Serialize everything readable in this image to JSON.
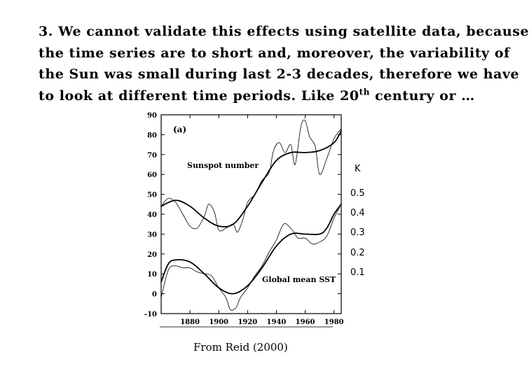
{
  "slide": {
    "line1": "3. We cannot validate this effects using satellite data, because",
    "line2": "the time series are to short and, moreover,  the variability of",
    "line3": "the Sun was small during last 2-3 decades, therefore we have",
    "line4_pre": "to  look at different time periods.    Like 20",
    "line4_sup": "th",
    "line4_post": " century or …",
    "caption": "From Reid (2000)"
  },
  "chart_data": {
    "type": "line",
    "panel_label": "(a)",
    "xlim": [
      1860,
      1985
    ],
    "ylim": [
      -10,
      90
    ],
    "x_ticks": [
      1880,
      1900,
      1920,
      1940,
      1960,
      1980
    ],
    "y_ticks": [
      -10,
      0,
      10,
      20,
      30,
      40,
      50,
      60,
      70,
      80,
      90
    ],
    "right_axis": {
      "label": "K",
      "ticks": [
        "0.5",
        "0.4",
        "0.3",
        "0.2",
        "0.1"
      ],
      "tick_positions_left_units": [
        50,
        40,
        30,
        20,
        10
      ]
    },
    "annotations": [
      "Sunspot number",
      "Global mean SST"
    ],
    "series": [
      {
        "style": "smooth",
        "x": [
          1860,
          1870,
          1880,
          1890,
          1900,
          1910,
          1920,
          1930,
          1940,
          1950,
          1960,
          1970,
          1980,
          1985
        ],
        "values": [
          44,
          47,
          44,
          38,
          34,
          35,
          44,
          56,
          67,
          71,
          71,
          72,
          76,
          82
        ]
      },
      {
        "style": "raw",
        "x": [
          1860,
          1865,
          1870,
          1875,
          1880,
          1885,
          1890,
          1893,
          1897,
          1900,
          1905,
          1910,
          1913,
          1917,
          1920,
          1925,
          1930,
          1935,
          1938,
          1942,
          1946,
          1950,
          1953,
          1957,
          1960,
          1963,
          1967,
          1970,
          1975,
          1980,
          1985
        ],
        "values": [
          44,
          48,
          46,
          40,
          34,
          33,
          39,
          45,
          41,
          32,
          33,
          35,
          31,
          38,
          46,
          50,
          57,
          61,
          72,
          76,
          71,
          75,
          65,
          84,
          87,
          79,
          74,
          60,
          68,
          78,
          83
        ]
      },
      {
        "style": "smooth",
        "x": [
          1860,
          1865,
          1870,
          1880,
          1890,
          1900,
          1910,
          1920,
          1930,
          1940,
          1950,
          1960,
          1970,
          1975,
          1980,
          1985
        ],
        "values": [
          6,
          15,
          17,
          16,
          10,
          3,
          0,
          4,
          13,
          24,
          30,
          30,
          30,
          33,
          40,
          45
        ]
      },
      {
        "style": "raw",
        "x": [
          1860,
          1865,
          1870,
          1875,
          1880,
          1885,
          1890,
          1895,
          1900,
          1905,
          1908,
          1912,
          1915,
          1920,
          1925,
          1930,
          1935,
          1940,
          1945,
          1950,
          1955,
          1960,
          1965,
          1970,
          1975,
          1980,
          1985
        ],
        "values": [
          -2,
          12,
          14,
          13,
          13,
          11,
          10,
          9,
          3,
          -2,
          -8,
          -7,
          -2,
          3,
          9,
          14,
          21,
          27,
          35,
          33,
          28,
          28,
          25,
          26,
          29,
          38,
          45
        ]
      }
    ]
  }
}
